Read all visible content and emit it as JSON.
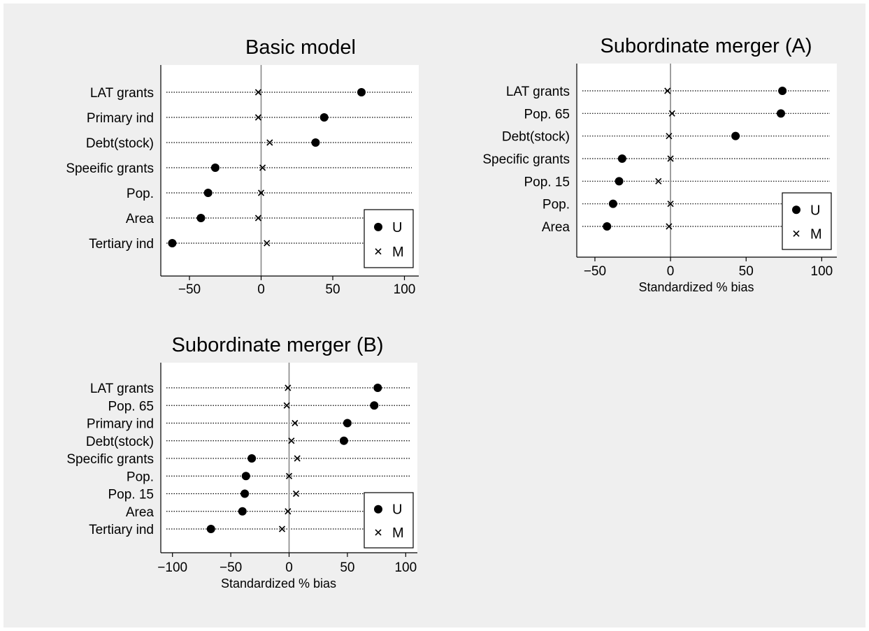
{
  "chart_data": [
    {
      "type": "scatter",
      "title": "Basic model",
      "xlabel": "",
      "xlim": [
        -70,
        110
      ],
      "xticks": [
        -50,
        0,
        50,
        100
      ],
      "xtick_labels": [
        "−50",
        "0",
        "50",
        "100"
      ],
      "reference_line_x": 0,
      "grid": "dotted lines per category",
      "legend_position": "bottom-right",
      "categories": [
        "LAT grants",
        "Primary ind",
        "Debt(stock)",
        "Speeific grants",
        "Pop.",
        "Area",
        "Tertiary ind"
      ],
      "series": [
        {
          "name": "U",
          "marker": "circle",
          "values": [
            70,
            44,
            38,
            -32,
            -37,
            -42,
            -62
          ]
        },
        {
          "name": "M",
          "marker": "cross",
          "values": [
            -2,
            -2,
            6,
            1,
            0,
            -2,
            4
          ]
        }
      ]
    },
    {
      "type": "scatter",
      "title": "Subordinate merger (A)",
      "xlabel": "Standardized % bias",
      "xlim": [
        -62,
        110
      ],
      "xticks": [
        -50,
        0,
        50,
        100
      ],
      "xtick_labels": [
        "−50",
        "0",
        "50",
        "100"
      ],
      "reference_line_x": 0,
      "grid": "dotted lines per category",
      "legend_position": "bottom-right",
      "categories": [
        "LAT grants",
        "Pop. 65",
        "Debt(stock)",
        "Specific grants",
        "Pop. 15",
        "Pop.",
        "Area"
      ],
      "series": [
        {
          "name": "U",
          "marker": "circle",
          "values": [
            74,
            73,
            43,
            -32,
            -34,
            -38,
            -42
          ]
        },
        {
          "name": "M",
          "marker": "cross",
          "values": [
            -2,
            1,
            -1,
            0,
            -8,
            0,
            -1
          ]
        }
      ]
    },
    {
      "type": "scatter",
      "title": "Subordinate merger (B)",
      "xlabel": "Standardized % bias",
      "xlim": [
        -110,
        110
      ],
      "xticks": [
        -100,
        -50,
        0,
        50,
        100
      ],
      "xtick_labels": [
        "−100",
        "−50",
        "0",
        "50",
        "100"
      ],
      "reference_line_x": 0,
      "grid": "dotted lines per category",
      "legend_position": "bottom-right",
      "categories": [
        "LAT grants",
        "Pop. 65",
        "Primary ind",
        "Debt(stock)",
        "Specific grants",
        "Pop.",
        "Pop. 15",
        "Area",
        "Tertiary ind"
      ],
      "series": [
        {
          "name": "U",
          "marker": "circle",
          "values": [
            76,
            73,
            50,
            47,
            -32,
            -37,
            -38,
            -40,
            -67
          ]
        },
        {
          "name": "M",
          "marker": "cross",
          "values": [
            -1,
            -2,
            5,
            2,
            7,
            0,
            6,
            -1,
            -6
          ]
        }
      ]
    }
  ]
}
